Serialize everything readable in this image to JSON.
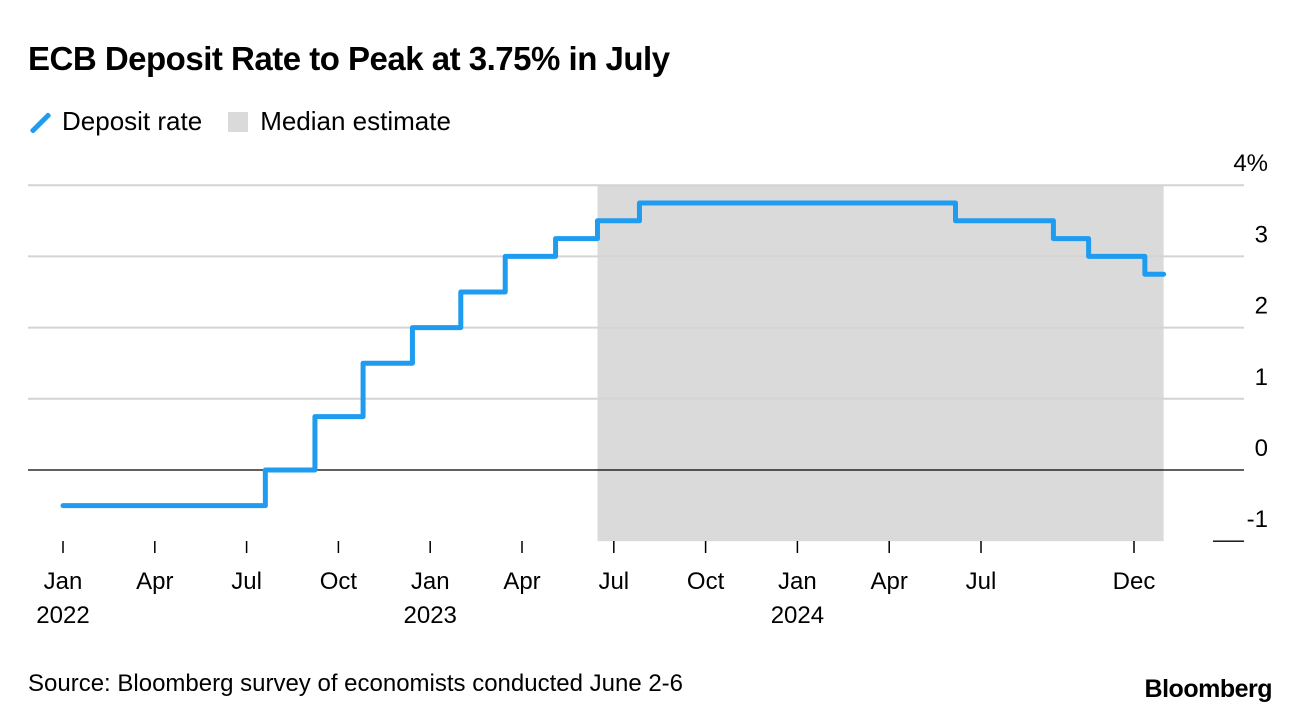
{
  "chart_data": {
    "type": "line",
    "title": "ECB Deposit Rate to Peak at 3.75% in July",
    "legend_placement": "top-left",
    "series": [
      {
        "name": "Deposit rate",
        "color": "#1f9cf0",
        "step": true,
        "points": [
          [
            "2022-01-01",
            -0.5
          ],
          [
            "2022-07-20",
            0.0
          ],
          [
            "2022-09-08",
            0.75
          ],
          [
            "2022-10-26",
            1.5
          ],
          [
            "2022-12-14",
            2.0
          ],
          [
            "2023-02-01",
            2.5
          ],
          [
            "2023-03-15",
            3.0
          ],
          [
            "2023-05-04",
            3.25
          ],
          [
            "2023-06-15",
            3.5
          ],
          [
            "2023-07-27",
            3.75
          ],
          [
            "2024-06-06",
            3.5
          ],
          [
            "2024-09-12",
            3.25
          ],
          [
            "2024-10-17",
            3.0
          ],
          [
            "2024-12-12",
            2.75
          ],
          [
            "2024-12-31",
            2.75
          ]
        ]
      }
    ],
    "shaded_region": {
      "name": "Median estimate",
      "color": "#dadada",
      "start": "2023-06-15",
      "end": "2024-12-31"
    },
    "ylim": [
      -1,
      4
    ],
    "y_ticks": [
      {
        "value": 4,
        "label": "4%"
      },
      {
        "value": 3,
        "label": "3"
      },
      {
        "value": 2,
        "label": "2"
      },
      {
        "value": 1,
        "label": "1"
      },
      {
        "value": 0,
        "label": "0"
      },
      {
        "value": -1,
        "label": "-1"
      }
    ],
    "x_ticks": [
      {
        "date": "2022-01-01",
        "label": "Jan",
        "year": "2022"
      },
      {
        "date": "2022-04-01",
        "label": "Apr"
      },
      {
        "date": "2022-07-01",
        "label": "Jul"
      },
      {
        "date": "2022-10-01",
        "label": "Oct"
      },
      {
        "date": "2023-01-01",
        "label": "Jan",
        "year": "2023"
      },
      {
        "date": "2023-04-01",
        "label": "Apr"
      },
      {
        "date": "2023-07-01",
        "label": "Jul"
      },
      {
        "date": "2023-10-01",
        "label": "Oct"
      },
      {
        "date": "2024-01-01",
        "label": "Jan",
        "year": "2024"
      },
      {
        "date": "2024-04-01",
        "label": "Apr"
      },
      {
        "date": "2024-07-01",
        "label": "Jul"
      },
      {
        "date": "2024-12-01",
        "label": "Dec"
      }
    ],
    "grid": true,
    "axis_side": "right"
  },
  "source": "Source: Bloomberg survey of economists conducted June 2-6",
  "brand": "Bloomberg"
}
